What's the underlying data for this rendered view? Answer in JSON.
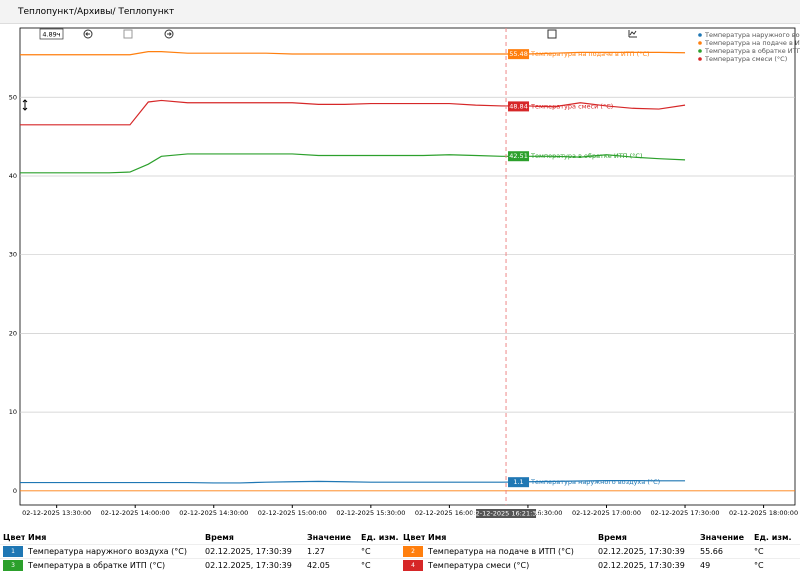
{
  "header": {
    "breadcrumb": "Теплопункт/Архивы/ Теплопункт"
  },
  "toolbar": {
    "range": "4.89ч"
  },
  "chart_data": {
    "type": "line",
    "x": [
      "02-12-2025 13:16:00",
      "02-12-2025 13:30:00",
      "02-12-2025 13:40:00",
      "02-12-2025 13:50:00",
      "02-12-2025 13:58:00",
      "02-12-2025 14:05:00",
      "02-12-2025 14:10:00",
      "02-12-2025 14:20:00",
      "02-12-2025 14:30:00",
      "02-12-2025 14:40:00",
      "02-12-2025 14:50:00",
      "02-12-2025 15:00:00",
      "02-12-2025 15:10:00",
      "02-12-2025 15:20:00",
      "02-12-2025 15:30:00",
      "02-12-2025 15:40:00",
      "02-12-2025 15:50:00",
      "02-12-2025 16:00:00",
      "02-12-2025 16:10:00",
      "02-12-2025 16:20:00",
      "02-12-2025 16:30:00",
      "02-12-2025 16:40:00",
      "02-12-2025 16:50:00",
      "02-12-2025 17:00:00",
      "02-12-2025 17:10:00",
      "02-12-2025 17:20:00",
      "02-12-2025 17:30:00"
    ],
    "series": [
      {
        "name": "Температура наружного воздуха (°C)",
        "color": "#1f77b4",
        "values": [
          1.05,
          1.05,
          1.05,
          1.05,
          1.05,
          1.05,
          1.05,
          1.05,
          1.0,
          1.0,
          1.1,
          1.15,
          1.2,
          1.15,
          1.1,
          1.1,
          1.1,
          1.1,
          1.1,
          1.1,
          1.15,
          1.2,
          1.25,
          1.3,
          1.3,
          1.27,
          1.27
        ]
      },
      {
        "name": "Температура на подаче в ИТП (°C)",
        "color": "#ff7f0e",
        "values": [
          55.4,
          55.4,
          55.4,
          55.4,
          55.4,
          55.8,
          55.8,
          55.6,
          55.6,
          55.6,
          55.6,
          55.5,
          55.5,
          55.5,
          55.5,
          55.5,
          55.5,
          55.5,
          55.5,
          55.5,
          55.5,
          55.6,
          55.7,
          55.7,
          55.7,
          55.7,
          55.66
        ]
      },
      {
        "name": "Температура в обратке ИТП (°C)",
        "color": "#2ca02c",
        "values": [
          40.4,
          40.4,
          40.4,
          40.4,
          40.5,
          41.5,
          42.5,
          42.8,
          42.8,
          42.8,
          42.8,
          42.8,
          42.6,
          42.6,
          42.6,
          42.6,
          42.6,
          42.7,
          42.6,
          42.5,
          42.5,
          42.5,
          42.4,
          42.7,
          42.4,
          42.2,
          42.05
        ]
      },
      {
        "name": "Температура смеси (°C)",
        "color": "#d62728",
        "values": [
          46.5,
          46.5,
          46.5,
          46.5,
          46.5,
          49.4,
          49.6,
          49.3,
          49.3,
          49.3,
          49.3,
          49.3,
          49.1,
          49.1,
          49.2,
          49.2,
          49.2,
          49.2,
          49.0,
          48.9,
          48.9,
          48.8,
          49.3,
          48.9,
          48.6,
          48.5,
          49
        ]
      }
    ],
    "xlim": [
      "02-12-2025 13:16:00",
      "02-12-2025 18:12:00"
    ],
    "xticks": [
      "02-12-2025 13:30:00",
      "02-12-2025 14:00:00",
      "02-12-2025 14:30:00",
      "02-12-2025 15:00:00",
      "02-12-2025 15:30:00",
      "02-12-2025 16:00:00",
      "02-12-2025 16:30:00",
      "02-12-2025 17:00:00",
      "02-12-2025 17:30:00",
      "02-12-2025 18:00:00"
    ],
    "ylim": [
      -1.8,
      58.8
    ],
    "yticks": [
      0,
      10,
      20,
      30,
      40,
      50
    ],
    "grid": true,
    "legend": "top-right",
    "cursor": {
      "x": "02-12-2025 16:21:38",
      "values": [
        1.1,
        55.48,
        42.51,
        48.84
      ]
    }
  },
  "table": {
    "headers": [
      "Цвет",
      "Имя",
      "Время",
      "Значение",
      "Ед. изм."
    ],
    "rows": [
      {
        "index": "1",
        "name": "Температура наружного воздуха (°C)",
        "time": "02.12.2025, 17:30:39",
        "value": "1.27",
        "unit": "°C"
      },
      {
        "index": "2",
        "name": "Температура на подаче в ИТП (°C)",
        "time": "02.12.2025, 17:30:39",
        "value": "55.66",
        "unit": "°C"
      },
      {
        "index": "3",
        "name": "Температура в обратке ИТП (°C)",
        "time": "02.12.2025, 17:30:39",
        "value": "42.05",
        "unit": "°C"
      },
      {
        "index": "4",
        "name": "Температура смеси (°C)",
        "time": "02.12.2025, 17:30:39",
        "value": "49",
        "unit": "°C"
      }
    ]
  }
}
